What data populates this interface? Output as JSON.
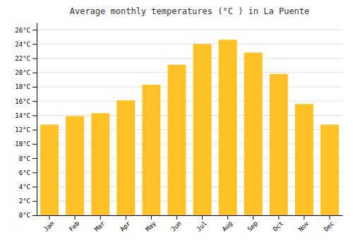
{
  "chart_data": {
    "type": "bar",
    "title": "Average monthly temperatures (°C ) in La Puente",
    "categories": [
      "Jan",
      "Feb",
      "Mar",
      "Apr",
      "May",
      "Jun",
      "Jul",
      "Aug",
      "Sep",
      "Oct",
      "Nov",
      "Dec"
    ],
    "values": [
      12.7,
      13.9,
      14.3,
      16.1,
      18.3,
      21.1,
      24.0,
      24.6,
      22.8,
      19.8,
      15.6,
      12.7
    ],
    "color": "#FFC125",
    "ylim": [
      0,
      27
    ],
    "yticks": [
      {
        "value": 0,
        "label": "0°C"
      },
      {
        "value": 2,
        "label": "2°C"
      },
      {
        "value": 4,
        "label": "4°C"
      },
      {
        "value": 6,
        "label": "6°C"
      },
      {
        "value": 8,
        "label": "8°C"
      },
      {
        "value": 10,
        "label": "10°C"
      },
      {
        "value": 12,
        "label": "12°C"
      },
      {
        "value": 14,
        "label": "14°C"
      },
      {
        "value": 16,
        "label": "16°C"
      },
      {
        "value": 18,
        "label": "18°C"
      },
      {
        "value": 20,
        "label": "20°C"
      },
      {
        "value": 22,
        "label": "22°C"
      },
      {
        "value": 24,
        "label": "24°C"
      },
      {
        "value": 26,
        "label": "26°C"
      }
    ],
    "grid": true
  }
}
